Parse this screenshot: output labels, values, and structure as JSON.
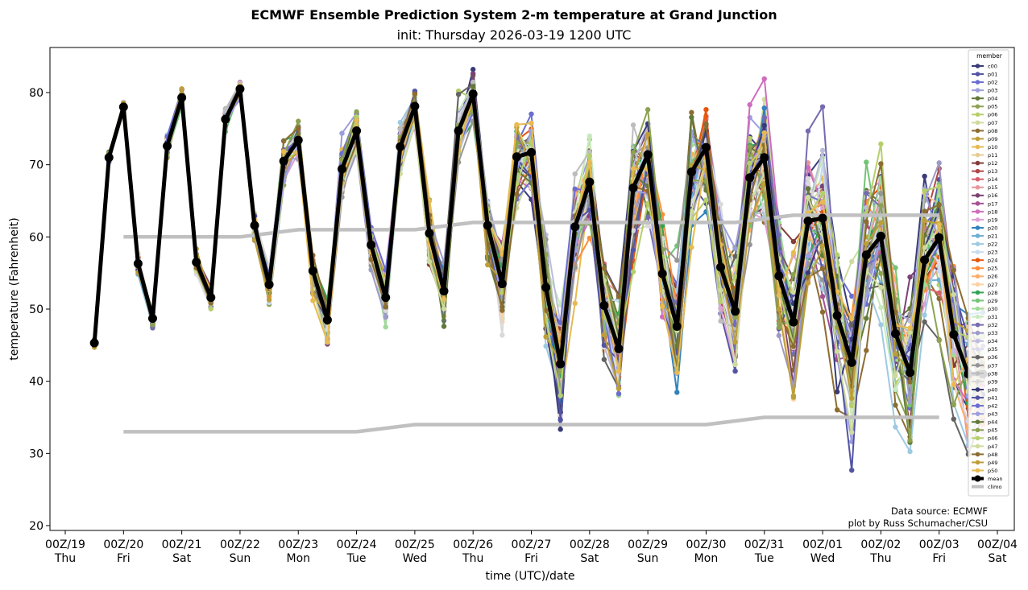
{
  "chart_data": {
    "type": "line",
    "title": "ECMWF Ensemble Prediction System 2-m temperature at Grand Junction",
    "subtitle": "init: Thursday 2026-03-19 1200 UTC",
    "xlabel": "time (UTC)/date",
    "ylabel": "temperature (Fahrenheit)",
    "x_unit": "hours since 00Z/19",
    "xlim": [
      0,
      384
    ],
    "ylim": [
      19.5,
      86.3
    ],
    "y_ticks": [
      20,
      30,
      40,
      50,
      60,
      70,
      80
    ],
    "x_ticks": [
      {
        "hour": 0,
        "line1": "00Z/19",
        "line2": "Thu"
      },
      {
        "hour": 24,
        "line1": "00Z/20",
        "line2": "Fri"
      },
      {
        "hour": 48,
        "line1": "00Z/21",
        "line2": "Sat"
      },
      {
        "hour": 72,
        "line1": "00Z/22",
        "line2": "Sun"
      },
      {
        "hour": 96,
        "line1": "00Z/23",
        "line2": "Mon"
      },
      {
        "hour": 120,
        "line1": "00Z/24",
        "line2": "Tue"
      },
      {
        "hour": 144,
        "line1": "00Z/25",
        "line2": "Wed"
      },
      {
        "hour": 168,
        "line1": "00Z/26",
        "line2": "Thu"
      },
      {
        "hour": 192,
        "line1": "00Z/27",
        "line2": "Fri"
      },
      {
        "hour": 216,
        "line1": "00Z/28",
        "line2": "Sat"
      },
      {
        "hour": 240,
        "line1": "00Z/29",
        "line2": "Sun"
      },
      {
        "hour": 264,
        "line1": "00Z/30",
        "line2": "Mon"
      },
      {
        "hour": 288,
        "line1": "00Z/31",
        "line2": "Tue"
      },
      {
        "hour": 312,
        "line1": "00Z/01",
        "line2": "Wed"
      },
      {
        "hour": 336,
        "line1": "00Z/02",
        "line2": "Thu"
      },
      {
        "hour": 360,
        "line1": "00Z/03",
        "line2": "Fri"
      },
      {
        "hour": 384,
        "line1": "00Z/04",
        "line2": "Sat"
      }
    ],
    "x": [
      12,
      18,
      24,
      30,
      36,
      42,
      48,
      54,
      60,
      66,
      72,
      78,
      84,
      90,
      96,
      102,
      108,
      114,
      120,
      126,
      132,
      138,
      144,
      150,
      156,
      162,
      168,
      174,
      180,
      186,
      192,
      198,
      204,
      210,
      216,
      222,
      228,
      234,
      240,
      246,
      252,
      258,
      264,
      270,
      276,
      282,
      288,
      294,
      300,
      306,
      312,
      318,
      324,
      330,
      336,
      342,
      348,
      354,
      360,
      366,
      372,
      378
    ],
    "mean": [
      45.3,
      71.0,
      78.0,
      56.3,
      48.7,
      72.6,
      79.3,
      56.5,
      51.6,
      76.3,
      80.5,
      61.6,
      53.4,
      70.5,
      73.4,
      55.3,
      48.5,
      69.4,
      74.7,
      58.9,
      51.6,
      72.5,
      78.1,
      60.5,
      52.5,
      74.7,
      79.8,
      61.6,
      53.5,
      71.1,
      71.7,
      53.0,
      42.4,
      61.4,
      67.6,
      50.5,
      44.5,
      66.8,
      71.4,
      54.9,
      47.6,
      69.0,
      72.4,
      55.8,
      49.7,
      68.2,
      71.0,
      54.6,
      48.2,
      62.2,
      62.6,
      49.1,
      42.6,
      57.5,
      60.1,
      46.6,
      41.2,
      56.8,
      59.9,
      46.5,
      41.0,
      41.0
    ],
    "spread": [
      0.6,
      0.8,
      0.8,
      1.2,
      1.3,
      1.4,
      1.2,
      1.3,
      1.4,
      1.5,
      1.3,
      2.0,
      2.2,
      2.6,
      2.6,
      3.0,
      3.2,
      3.0,
      2.8,
      3.2,
      3.4,
      3.0,
      2.8,
      3.5,
      3.6,
      3.4,
      3.2,
      4.2,
      4.4,
      4.8,
      5.5,
      7.0,
      7.5,
      7.0,
      6.5,
      7.5,
      8.0,
      7.5,
      7.0,
      7.5,
      8.0,
      7.5,
      7.0,
      7.5,
      8.5,
      8.0,
      8.5,
      9.0,
      9.0,
      9.5,
      9.5,
      9.0,
      9.5,
      9.5,
      9.0,
      9.5,
      10.0,
      9.5,
      9.5,
      9.5,
      10.0,
      10.0
    ],
    "climo_max": {
      "x": [
        24,
        72,
        84,
        96,
        144,
        156,
        168,
        276,
        288,
        300,
        360
      ],
      "values": [
        60,
        60,
        60.5,
        61,
        61,
        61.5,
        62,
        62,
        62.5,
        63,
        63
      ]
    },
    "climo_min": {
      "x": [
        24,
        120,
        132,
        144,
        264,
        276,
        288,
        360
      ],
      "values": [
        33,
        33,
        33.5,
        34,
        34,
        34.5,
        35,
        35
      ]
    },
    "legend": {
      "title": "member",
      "placement": "upper right",
      "members": [
        {
          "name": "c00",
          "color": "#393b79"
        },
        {
          "name": "p01",
          "color": "#5254a3"
        },
        {
          "name": "p02",
          "color": "#6b6ecf"
        },
        {
          "name": "p03",
          "color": "#9c9ede"
        },
        {
          "name": "p04",
          "color": "#637939"
        },
        {
          "name": "p05",
          "color": "#8ca252"
        },
        {
          "name": "p06",
          "color": "#b5cf6b"
        },
        {
          "name": "p07",
          "color": "#cedb9c"
        },
        {
          "name": "p08",
          "color": "#8c6d31"
        },
        {
          "name": "p09",
          "color": "#bd9e39"
        },
        {
          "name": "p10",
          "color": "#e7ba52"
        },
        {
          "name": "p11",
          "color": "#e7cb94"
        },
        {
          "name": "p12",
          "color": "#843c39"
        },
        {
          "name": "p13",
          "color": "#ad494a"
        },
        {
          "name": "p14",
          "color": "#d6616b"
        },
        {
          "name": "p15",
          "color": "#e7969c"
        },
        {
          "name": "p16",
          "color": "#7b4173"
        },
        {
          "name": "p17",
          "color": "#a55194"
        },
        {
          "name": "p18",
          "color": "#ce6dbd"
        },
        {
          "name": "p19",
          "color": "#de9ed6"
        },
        {
          "name": "p20",
          "color": "#3182bd"
        },
        {
          "name": "p21",
          "color": "#6baed6"
        },
        {
          "name": "p22",
          "color": "#9ecae1"
        },
        {
          "name": "p23",
          "color": "#c6dbef"
        },
        {
          "name": "p24",
          "color": "#e6550d"
        },
        {
          "name": "p25",
          "color": "#fd8d3c"
        },
        {
          "name": "p26",
          "color": "#fdae6b"
        },
        {
          "name": "p27",
          "color": "#fdd0a2"
        },
        {
          "name": "p28",
          "color": "#31a354"
        },
        {
          "name": "p29",
          "color": "#74c476"
        },
        {
          "name": "p30",
          "color": "#a1d99b"
        },
        {
          "name": "p31",
          "color": "#c7e9c0"
        },
        {
          "name": "p32",
          "color": "#756bb1"
        },
        {
          "name": "p33",
          "color": "#9e9ac8"
        },
        {
          "name": "p34",
          "color": "#bcbddc"
        },
        {
          "name": "p35",
          "color": "#dadaeb"
        },
        {
          "name": "p36",
          "color": "#636363"
        },
        {
          "name": "p37",
          "color": "#969696"
        },
        {
          "name": "p38",
          "color": "#bdbdbd"
        },
        {
          "name": "p39",
          "color": "#d9d9d9"
        },
        {
          "name": "p40",
          "color": "#393b79"
        },
        {
          "name": "p41",
          "color": "#5254a3"
        },
        {
          "name": "p42",
          "color": "#6b6ecf"
        },
        {
          "name": "p43",
          "color": "#9c9ede"
        },
        {
          "name": "p44",
          "color": "#637939"
        },
        {
          "name": "p45",
          "color": "#8ca252"
        },
        {
          "name": "p46",
          "color": "#b5cf6b"
        },
        {
          "name": "p47",
          "color": "#cedb9c"
        },
        {
          "name": "p48",
          "color": "#8c6d31"
        },
        {
          "name": "p49",
          "color": "#bd9e39"
        },
        {
          "name": "p50",
          "color": "#e7ba52"
        }
      ],
      "mean": {
        "name": "mean",
        "color": "#000000"
      },
      "climo": {
        "name": "climo",
        "color": "#c0c0c0"
      }
    },
    "annotations": [
      "Data source: ECMWF",
      "plot by Russ Schumacher/CSU"
    ]
  }
}
